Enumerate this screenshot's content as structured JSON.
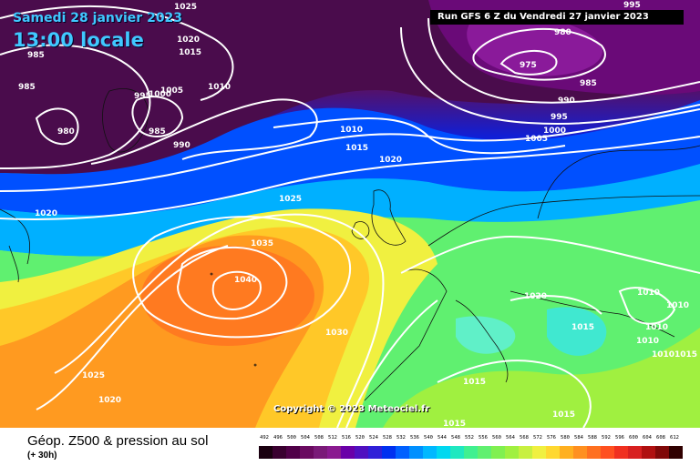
{
  "header": {
    "date": "Samedi 28 janvier 2023",
    "time": "13:00 locale",
    "run": "Run GFS 6 Z du Vendredi 27 janvier 2023"
  },
  "copyright": "Copyright © 2023 Meteociel.fr",
  "footer": {
    "title": "Géop. Z500 & pression au sol",
    "subtitle": "(+ 30h)"
  },
  "scale": {
    "labels": [
      "492",
      "496",
      "500",
      "504",
      "508",
      "512",
      "516",
      "520",
      "524",
      "528",
      "532",
      "536",
      "540",
      "544",
      "548",
      "552",
      "556",
      "560",
      "564",
      "568",
      "572",
      "576",
      "580",
      "584",
      "588",
      "592",
      "596",
      "600",
      "604",
      "608",
      "612"
    ],
    "colors": [
      "#1a0010",
      "#3a0030",
      "#500048",
      "#6a0a60",
      "#7a1a78",
      "#8a1a90",
      "#6a00a8",
      "#5010c0",
      "#3020d8",
      "#0030f0",
      "#0060ff",
      "#0090ff",
      "#00b8ff",
      "#00d8f0",
      "#20e8c0",
      "#40f090",
      "#60f070",
      "#80f050",
      "#a0f040",
      "#c8f040",
      "#f0f040",
      "#ffd830",
      "#ffb020",
      "#ff9020",
      "#ff7020",
      "#ff5020",
      "#f03020",
      "#d82020",
      "#b01010",
      "#800808",
      "#300000"
    ]
  },
  "isobars": [
    "1025",
    "1020",
    "985",
    "985",
    "995",
    "1000",
    "1005",
    "1010",
    "980",
    "985",
    "990",
    "1015",
    "980",
    "975",
    "985",
    "990",
    "995",
    "1000",
    "1005",
    "1010",
    "1015",
    "1020",
    "1025",
    "1020",
    "1035",
    "1040",
    "1030",
    "1025",
    "1020",
    "1020",
    "1015",
    "1010",
    "1010",
    "1010",
    "1015",
    "1010",
    "1010",
    "1015",
    "1015",
    "1015",
    "995"
  ]
}
